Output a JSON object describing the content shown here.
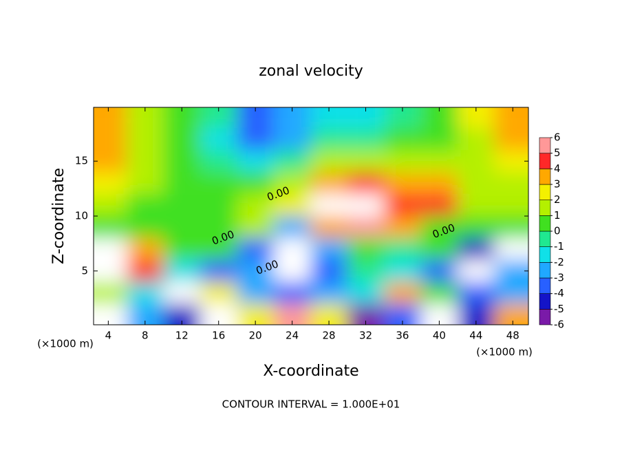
{
  "chart_data": {
    "type": "contour",
    "title": "zonal velocity",
    "xlabel": "X-coordinate",
    "ylabel": "Z-coordinate",
    "x_unit": "(×1000 m)",
    "x_unit_right": "(×1000 m)",
    "footer": "CONTOUR INTERVAL = 1.000E+01",
    "xlim": [
      2.4,
      49.7
    ],
    "ylim": [
      0.1,
      19.9
    ],
    "xticks": [
      4,
      8,
      12,
      16,
      20,
      24,
      28,
      32,
      36,
      40,
      44,
      48
    ],
    "yticks": [
      5,
      10,
      15
    ],
    "x": [
      4,
      8,
      12,
      16,
      20,
      24,
      28,
      32,
      36,
      40,
      44,
      48
    ],
    "y": [
      19,
      17,
      15,
      13,
      11,
      9,
      7,
      5,
      3,
      1
    ],
    "z": [
      [
        3.5,
        1.5,
        0.5,
        -1,
        -4,
        -3,
        -1.5,
        -1.5,
        -0.5,
        0.5,
        2,
        3.5
      ],
      [
        3.5,
        1.5,
        0.5,
        -1.5,
        -3.5,
        -2.5,
        -1,
        -0.5,
        0.5,
        0.5,
        1.5,
        3.5
      ],
      [
        3,
        1.5,
        0.5,
        -0.5,
        -2,
        -1,
        1,
        1.5,
        1.5,
        1,
        1,
        2.5
      ],
      [
        2,
        1,
        0.5,
        0.5,
        0.5,
        1,
        3,
        4.5,
        3.5,
        3,
        1.5,
        1.5
      ],
      [
        1,
        0.5,
        0.5,
        0.5,
        1,
        2,
        6.5,
        7,
        4,
        4.5,
        1.5,
        1
      ],
      [
        0.5,
        0.5,
        0.5,
        0.5,
        1,
        -3,
        3,
        5,
        3,
        0.5,
        0.5,
        0
      ],
      [
        7,
        3,
        0.5,
        0,
        -4,
        7,
        -3,
        0,
        -1,
        0,
        -5,
        7
      ],
      [
        7,
        4,
        -2,
        -4,
        -3,
        7,
        -4,
        -1,
        -2,
        -4,
        7,
        -3
      ],
      [
        1,
        -2,
        7,
        2,
        -3,
        -4,
        -3,
        -2,
        3,
        0,
        -4,
        -3
      ],
      [
        7,
        -3,
        -5,
        7,
        2,
        5,
        2,
        -6,
        -4,
        7,
        -5,
        3
      ]
    ],
    "levels": [
      -6,
      -5,
      -4,
      -3,
      -2,
      -1,
      0,
      1,
      2,
      3,
      4,
      5,
      6
    ],
    "colors": [
      "#7a1aa8",
      "#1414c8",
      "#2860ff",
      "#20a8ff",
      "#10e0e8",
      "#20e890",
      "#40e020",
      "#b4f000",
      "#f4f000",
      "#ffa800",
      "#ff2828",
      "#ff9898"
    ],
    "contour_labels": [
      {
        "text": "0.00",
        "x": 22.5,
        "y": 12
      },
      {
        "text": "0.00",
        "x": 16.5,
        "y": 8
      },
      {
        "text": "0.00",
        "x": 21.3,
        "y": 5.3
      },
      {
        "text": "0.00",
        "x": 40.5,
        "y": 8.6
      }
    ]
  }
}
